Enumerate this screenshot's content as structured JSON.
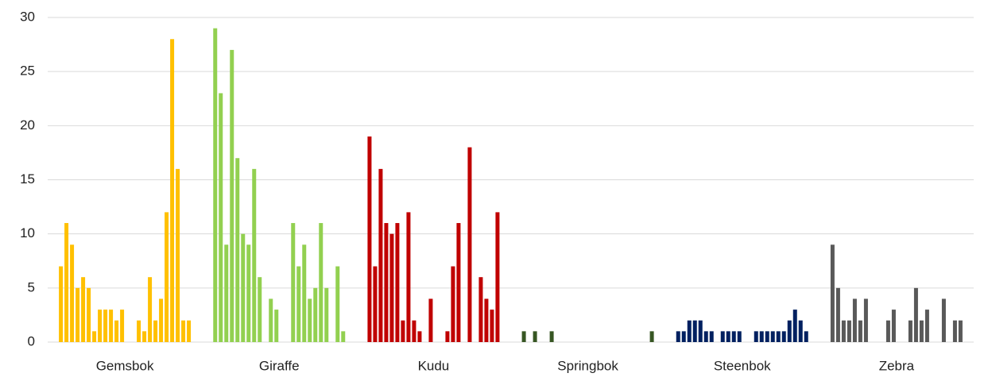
{
  "chart_data": {
    "type": "grouped-bar",
    "categories": [
      "Gemsbok",
      "Giraffe",
      "Kudu",
      "Springbok",
      "Steenbok",
      "Zebra"
    ],
    "colors": [
      "#ffc000",
      "#92d050",
      "#c00000",
      "#375623",
      "#002060",
      "#595959"
    ],
    "values": [
      [
        7,
        11,
        9,
        5,
        6,
        5,
        1,
        3,
        3,
        3,
        2,
        3,
        0,
        0,
        2,
        1,
        6,
        2,
        4,
        12,
        28,
        16,
        2,
        2
      ],
      [
        29,
        23,
        9,
        27,
        17,
        10,
        9,
        16,
        6,
        0,
        4,
        3,
        0,
        0,
        11,
        7,
        9,
        4,
        5,
        11,
        5,
        0,
        7,
        1
      ],
      [
        19,
        7,
        16,
        11,
        10,
        11,
        2,
        12,
        2,
        1,
        0,
        4,
        0,
        0,
        1,
        7,
        11,
        0,
        18,
        0,
        6,
        4,
        3,
        12
      ],
      [
        1,
        0,
        1,
        0,
        0,
        1,
        0,
        0,
        0,
        0,
        0,
        0,
        0,
        0,
        0,
        0,
        0,
        0,
        0,
        0,
        0,
        0,
        0,
        1
      ],
      [
        1,
        1,
        2,
        2,
        2,
        1,
        1,
        0,
        1,
        1,
        1,
        1,
        0,
        0,
        1,
        1,
        1,
        1,
        1,
        1,
        2,
        3,
        2,
        1
      ],
      [
        9,
        5,
        2,
        2,
        4,
        2,
        4,
        0,
        0,
        0,
        2,
        3,
        0,
        0,
        2,
        5,
        2,
        3,
        0,
        0,
        4,
        0,
        2,
        2
      ]
    ],
    "ylim": [
      0,
      30
    ],
    "yticks": [
      0,
      5,
      10,
      15,
      20,
      25,
      30
    ],
    "grid": true
  }
}
